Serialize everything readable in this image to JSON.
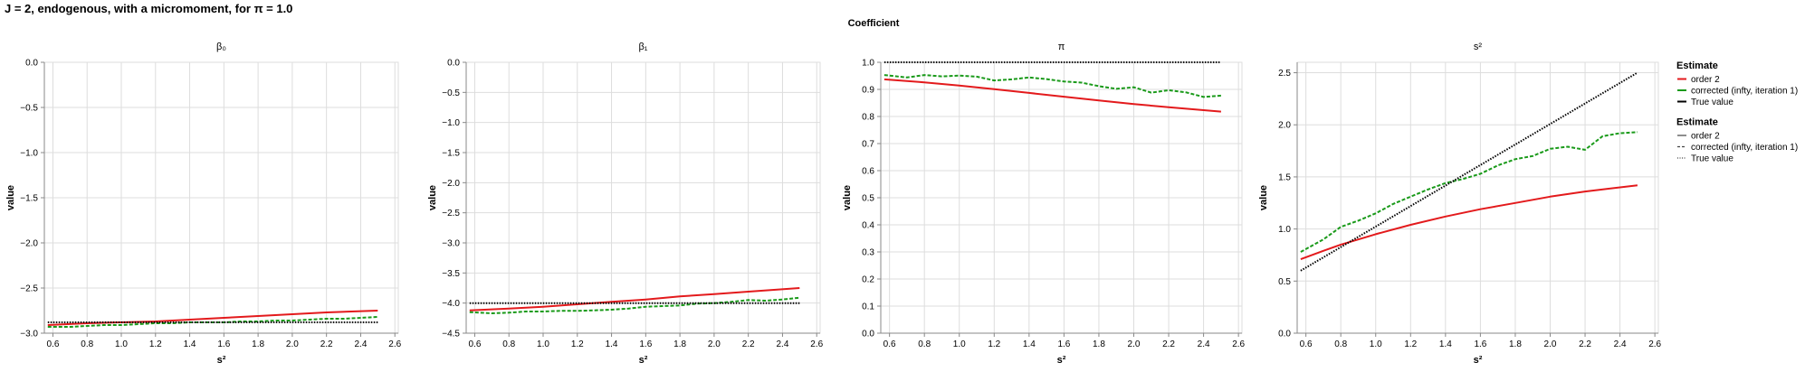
{
  "title": "J = 2, endogenous, with a micromoment,  for π = 1.0",
  "facet_title": "Coefficient",
  "colors": {
    "order2": "#e31a1c",
    "corrected": "#1a9a1a",
    "true": "#000000",
    "grid": "#dddddd"
  },
  "legends": [
    {
      "title": "Estimate",
      "kind": "color",
      "entries": [
        {
          "label": "order 2",
          "color": "#e31a1c"
        },
        {
          "label": "corrected (infty, iteration 1)",
          "color": "#1a9a1a"
        },
        {
          "label": "True value",
          "color": "#000000"
        }
      ]
    },
    {
      "title": "Estimate",
      "kind": "dash",
      "entries": [
        {
          "label": "order 2",
          "dash": "solid"
        },
        {
          "label": "corrected (infty, iteration 1)",
          "dash": "dashed"
        },
        {
          "label": "True value",
          "dash": "dotted"
        }
      ]
    }
  ],
  "chart_data": [
    {
      "type": "line",
      "title": "β₀",
      "xlabel": "s²",
      "ylabel": "value",
      "xlim": [
        0.55,
        2.62
      ],
      "ylim": [
        -3.0,
        0.0
      ],
      "xticks": [
        "0.6",
        "0.8",
        "1.0",
        "1.2",
        "1.4",
        "1.6",
        "1.8",
        "2.0",
        "2.2",
        "2.4",
        "2.6"
      ],
      "yticks": [
        "0.0",
        "−0.5",
        "−1.0",
        "−1.5",
        "−2.0",
        "−2.5",
        "−3.0"
      ],
      "ytick_values": [
        0.0,
        -0.5,
        -1.0,
        -1.5,
        -2.0,
        -2.5,
        -3.0
      ],
      "series": [
        {
          "name": "order 2",
          "style": "solid",
          "x": [
            0.57,
            0.8,
            1.0,
            1.2,
            1.4,
            1.6,
            1.8,
            2.0,
            2.2,
            2.5
          ],
          "y": [
            -2.91,
            -2.89,
            -2.88,
            -2.87,
            -2.85,
            -2.83,
            -2.81,
            -2.79,
            -2.77,
            -2.75
          ]
        },
        {
          "name": "corrected (infty, iteration 1)",
          "style": "dashed",
          "x": [
            0.57,
            0.7,
            0.8,
            0.9,
            1.0,
            1.1,
            1.2,
            1.3,
            1.4,
            1.5,
            1.6,
            1.7,
            1.8,
            1.9,
            2.0,
            2.1,
            2.2,
            2.3,
            2.4,
            2.5
          ],
          "y": [
            -2.93,
            -2.93,
            -2.92,
            -2.91,
            -2.91,
            -2.9,
            -2.89,
            -2.89,
            -2.88,
            -2.88,
            -2.88,
            -2.87,
            -2.87,
            -2.86,
            -2.86,
            -2.85,
            -2.84,
            -2.84,
            -2.83,
            -2.82
          ]
        },
        {
          "name": "True value",
          "style": "dotted",
          "x": [
            0.57,
            2.5
          ],
          "y": [
            -2.88,
            -2.88
          ]
        }
      ]
    },
    {
      "type": "line",
      "title": "β₁",
      "xlabel": "s²",
      "ylabel": "value",
      "xlim": [
        0.55,
        2.62
      ],
      "ylim": [
        -4.5,
        0.0
      ],
      "xticks": [
        "0.6",
        "0.8",
        "1.0",
        "1.2",
        "1.4",
        "1.6",
        "1.8",
        "2.0",
        "2.2",
        "2.4",
        "2.6"
      ],
      "yticks": [
        "0.0",
        "−0.5",
        "−1.0",
        "−1.5",
        "−2.0",
        "−2.5",
        "−3.0",
        "−3.5",
        "−4.0",
        "−4.5"
      ],
      "ytick_values": [
        0.0,
        -0.5,
        -1.0,
        -1.5,
        -2.0,
        -2.5,
        -3.0,
        -3.5,
        -4.0,
        -4.5
      ],
      "series": [
        {
          "name": "order 2",
          "style": "solid",
          "x": [
            0.57,
            0.8,
            1.0,
            1.2,
            1.4,
            1.6,
            1.8,
            2.0,
            2.2,
            2.5
          ],
          "y": [
            -4.12,
            -4.09,
            -4.06,
            -4.02,
            -3.98,
            -3.94,
            -3.89,
            -3.85,
            -3.81,
            -3.75
          ]
        },
        {
          "name": "corrected (infty, iteration 1)",
          "style": "dashed",
          "x": [
            0.57,
            0.7,
            0.8,
            0.9,
            1.0,
            1.1,
            1.2,
            1.3,
            1.4,
            1.5,
            1.6,
            1.7,
            1.8,
            1.9,
            2.0,
            2.1,
            2.2,
            2.3,
            2.4,
            2.5
          ],
          "y": [
            -4.15,
            -4.17,
            -4.16,
            -4.14,
            -4.14,
            -4.13,
            -4.13,
            -4.12,
            -4.11,
            -4.09,
            -4.06,
            -4.05,
            -4.04,
            -4.01,
            -4.0,
            -3.98,
            -3.95,
            -3.96,
            -3.94,
            -3.91
          ]
        },
        {
          "name": "True value",
          "style": "dotted",
          "x": [
            0.57,
            2.5
          ],
          "y": [
            -4.0,
            -4.0
          ]
        }
      ]
    },
    {
      "type": "line",
      "title": "π",
      "xlabel": "s²",
      "ylabel": "value",
      "xlim": [
        0.55,
        2.62
      ],
      "ylim": [
        0.0,
        1.0
      ],
      "xticks": [
        "0.6",
        "0.8",
        "1.0",
        "1.2",
        "1.4",
        "1.6",
        "1.8",
        "2.0",
        "2.2",
        "2.4",
        "2.6"
      ],
      "yticks": [
        "1.0",
        "0.9",
        "0.8",
        "0.7",
        "0.6",
        "0.5",
        "0.4",
        "0.3",
        "0.2",
        "0.1",
        "0.0"
      ],
      "ytick_values": [
        1.0,
        0.9,
        0.8,
        0.7,
        0.6,
        0.5,
        0.4,
        0.3,
        0.2,
        0.1,
        0.0
      ],
      "series": [
        {
          "name": "order 2",
          "style": "solid",
          "x": [
            0.57,
            0.8,
            1.0,
            1.2,
            1.4,
            1.6,
            1.8,
            2.0,
            2.2,
            2.5
          ],
          "y": [
            0.937,
            0.926,
            0.914,
            0.901,
            0.887,
            0.873,
            0.859,
            0.846,
            0.834,
            0.818
          ]
        },
        {
          "name": "corrected (infty, iteration 1)",
          "style": "dashed",
          "x": [
            0.57,
            0.7,
            0.8,
            0.9,
            1.0,
            1.1,
            1.2,
            1.3,
            1.4,
            1.5,
            1.6,
            1.7,
            1.8,
            1.9,
            2.0,
            2.1,
            2.2,
            2.3,
            2.4,
            2.5
          ],
          "y": [
            0.953,
            0.944,
            0.953,
            0.948,
            0.951,
            0.947,
            0.933,
            0.937,
            0.944,
            0.938,
            0.929,
            0.925,
            0.912,
            0.902,
            0.908,
            0.888,
            0.897,
            0.889,
            0.872,
            0.877
          ]
        },
        {
          "name": "True value",
          "style": "dotted",
          "x": [
            0.57,
            2.5
          ],
          "y": [
            1.0,
            1.0
          ]
        }
      ]
    },
    {
      "type": "line",
      "title": "s²",
      "xlabel": "s²",
      "ylabel": "value",
      "xlim": [
        0.55,
        2.62
      ],
      "ylim": [
        0.0,
        2.6
      ],
      "xticks": [
        "0.6",
        "0.8",
        "1.0",
        "1.2",
        "1.4",
        "1.6",
        "1.8",
        "2.0",
        "2.2",
        "2.4",
        "2.6"
      ],
      "yticks": [
        "2.5",
        "2.0",
        "1.5",
        "1.0",
        "0.5",
        "0.0"
      ],
      "ytick_values": [
        2.5,
        2.0,
        1.5,
        1.0,
        0.5,
        0.0
      ],
      "series": [
        {
          "name": "order 2",
          "style": "solid",
          "x": [
            0.57,
            0.7,
            0.8,
            0.9,
            1.0,
            1.2,
            1.4,
            1.6,
            1.8,
            2.0,
            2.2,
            2.5
          ],
          "y": [
            0.71,
            0.79,
            0.85,
            0.9,
            0.95,
            1.04,
            1.12,
            1.19,
            1.25,
            1.31,
            1.36,
            1.42
          ]
        },
        {
          "name": "corrected (infty, iteration 1)",
          "style": "dashed",
          "x": [
            0.57,
            0.7,
            0.8,
            0.9,
            1.0,
            1.1,
            1.2,
            1.3,
            1.4,
            1.5,
            1.6,
            1.7,
            1.8,
            1.9,
            2.0,
            2.1,
            2.2,
            2.3,
            2.4,
            2.5
          ],
          "y": [
            0.78,
            0.9,
            1.02,
            1.08,
            1.15,
            1.24,
            1.31,
            1.38,
            1.44,
            1.48,
            1.53,
            1.61,
            1.67,
            1.7,
            1.77,
            1.79,
            1.76,
            1.89,
            1.92,
            1.93
          ]
        },
        {
          "name": "True value",
          "style": "dotted",
          "x": [
            0.57,
            2.5
          ],
          "y": [
            0.6,
            2.5
          ]
        }
      ]
    }
  ]
}
